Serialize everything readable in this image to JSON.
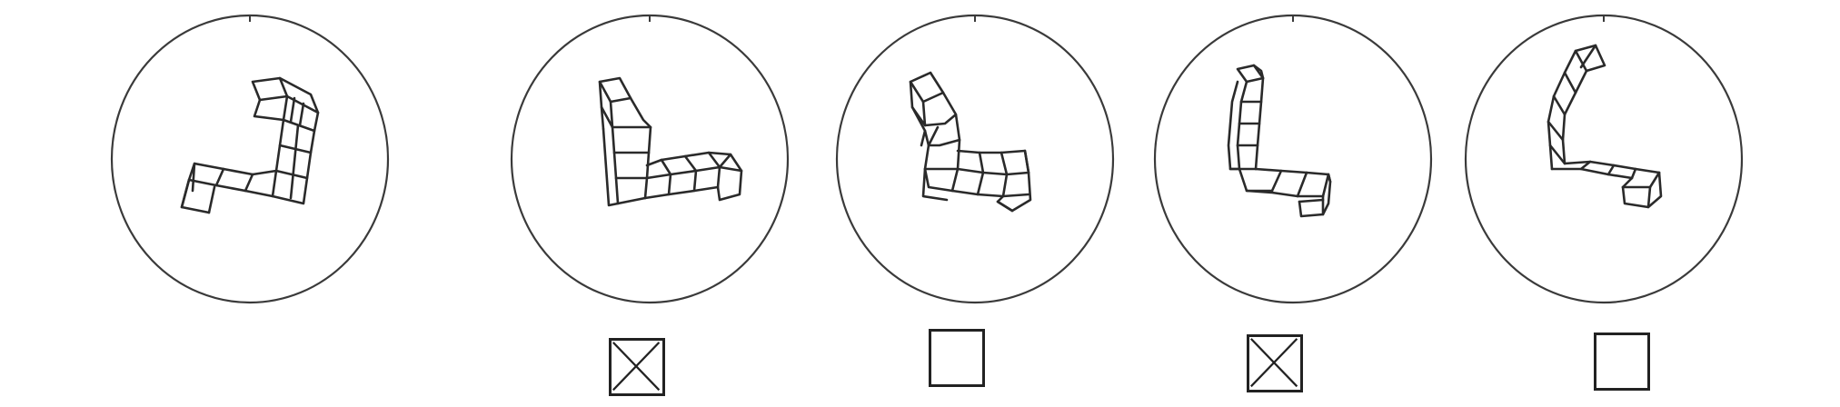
{
  "test": {
    "figures": [
      {
        "role": "target",
        "icon": "cube-shape-target"
      },
      {
        "role": "option",
        "icon": "cube-shape-option-1",
        "checked": true
      },
      {
        "role": "option",
        "icon": "cube-shape-option-2",
        "checked": false
      },
      {
        "role": "option",
        "icon": "cube-shape-option-3",
        "checked": true
      },
      {
        "role": "option",
        "icon": "cube-shape-option-4",
        "checked": false
      }
    ]
  }
}
